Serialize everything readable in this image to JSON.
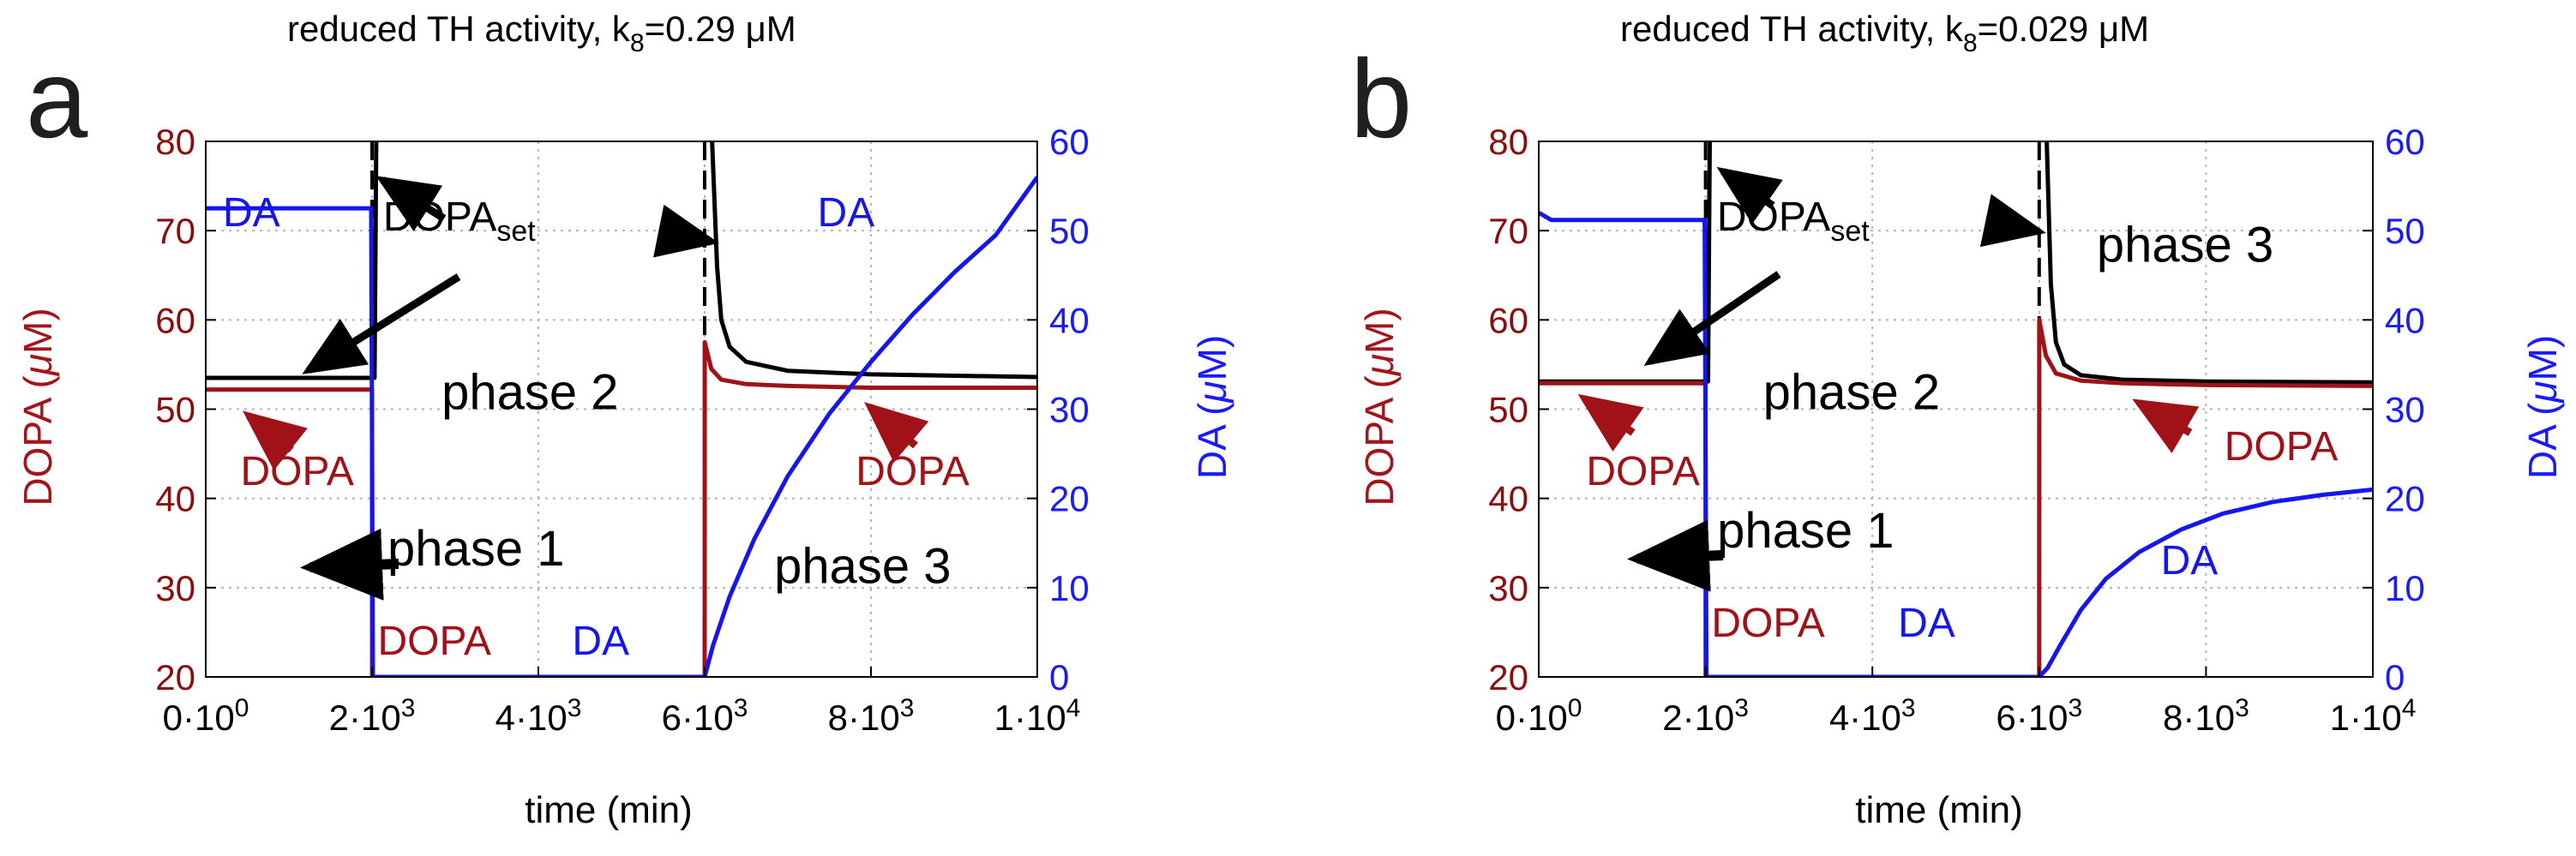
{
  "colors": {
    "dopa": "#a01218",
    "da": "#1515ee",
    "set": "#000000",
    "grid": "#b4b4b4",
    "dopa_tick": "#8b0e0e"
  },
  "chart_data": [
    {
      "type": "line",
      "panel_letter": "a",
      "title": "reduced TH activity, k",
      "title_sub": "8",
      "title_tail": "=0.29 ",
      "title_unit": "μM",
      "xlabel": "time (min)",
      "ylabel_left": "DOPA (",
      "ylabel_left_mu": "μ",
      "ylabel_left_tail": "M)",
      "ylabel_right": "DA (",
      "ylabel_right_mu": "μ",
      "ylabel_right_tail": "M)",
      "xlim": [
        0,
        10000
      ],
      "ylim_left": [
        20,
        80
      ],
      "ylim_right": [
        0,
        60
      ],
      "grid": true,
      "x_ticks": [
        0,
        2000,
        4000,
        6000,
        8000,
        10000
      ],
      "x_tick_mant": [
        "0·10",
        "2·10",
        "4·10",
        "6·10",
        "8·10",
        "1·10"
      ],
      "x_tick_exp": [
        "0",
        "3",
        "3",
        "3",
        "3",
        "4"
      ],
      "y_ticks_left": [
        "20",
        "30",
        "40",
        "50",
        "60",
        "70",
        "80"
      ],
      "y_ticks_right": [
        "0",
        "10",
        "20",
        "30",
        "40",
        "50",
        "60"
      ],
      "series": [
        {
          "name": "DOPA",
          "axis": "left",
          "points": [
            [
              0,
              52.2
            ],
            [
              2000,
              52.2
            ],
            [
              2001,
              20
            ],
            [
              6000,
              20
            ],
            [
              6001,
              57.5
            ],
            [
              6080,
              54.5
            ],
            [
              6200,
              53.3
            ],
            [
              6500,
              52.8
            ],
            [
              7000,
              52.6
            ],
            [
              8000,
              52.4
            ],
            [
              10000,
              52.4
            ]
          ]
        },
        {
          "name": "DA",
          "axis": "right",
          "points": [
            [
              0,
              52.5
            ],
            [
              1990,
              52.5
            ],
            [
              2010,
              0
            ],
            [
              6000,
              0
            ],
            [
              6100,
              3.5
            ],
            [
              6300,
              9
            ],
            [
              6600,
              15.5
            ],
            [
              7000,
              22.5
            ],
            [
              7500,
              29.5
            ],
            [
              8000,
              35.3
            ],
            [
              8500,
              40.6
            ],
            [
              9000,
              45.3
            ],
            [
              9500,
              49.5
            ],
            [
              10000,
              56
            ]
          ]
        },
        {
          "name": "DOPAset",
          "axis": "left",
          "points": [
            [
              0,
              53.5
            ],
            [
              2030,
              53.5
            ],
            [
              2050,
              80
            ]
          ]
        },
        {
          "name": "DOPAset",
          "axis": "left",
          "points": [
            [
              6090,
              80
            ],
            [
              6150,
              66
            ],
            [
              6200,
              60
            ],
            [
              6300,
              57
            ],
            [
              6500,
              55.3
            ],
            [
              7000,
              54.3
            ],
            [
              8000,
              53.9
            ],
            [
              10000,
              53.6
            ]
          ]
        }
      ],
      "dashed_x": [
        2000,
        6000
      ],
      "annotations": [
        {
          "text": "DA",
          "color": "da",
          "x": 550,
          "y": 70.5
        },
        {
          "text": "DOPA",
          "sub": "set",
          "color": "set",
          "x": 3050,
          "y": 70
        },
        {
          "text": "DA",
          "color": "da",
          "x": 7700,
          "y": 70.5
        },
        {
          "text": "phase 2",
          "color": "set",
          "x": 3900,
          "y": 50,
          "big": true
        },
        {
          "text": "DOPA",
          "color": "dopa",
          "x": 1100,
          "y": 41.5
        },
        {
          "text": "DOPA",
          "color": "dopa",
          "x": 8500,
          "y": 41.5
        },
        {
          "text": "phase 1",
          "color": "set",
          "x": 3250,
          "y": 32.5,
          "big": true
        },
        {
          "text": "phase 3",
          "color": "set",
          "x": 7900,
          "y": 30.5,
          "big": true
        },
        {
          "text": "DOPA",
          "color": "dopa",
          "x": 2750,
          "y": 22.5
        },
        {
          "text": "DA",
          "color": "da",
          "x": 4750,
          "y": 22.5
        }
      ]
    },
    {
      "type": "line",
      "panel_letter": "b",
      "title": "reduced TH activity, k",
      "title_sub": "8",
      "title_tail": "=0.029 ",
      "title_unit": "μM",
      "xlabel": "time (min)",
      "ylabel_left": "DOPA (",
      "ylabel_left_mu": "μ",
      "ylabel_left_tail": "M)",
      "ylabel_right": "DA (",
      "ylabel_right_mu": "μ",
      "ylabel_right_tail": "M)",
      "xlim": [
        0,
        10000
      ],
      "ylim_left": [
        20,
        80
      ],
      "ylim_right": [
        0,
        60
      ],
      "grid": true,
      "x_ticks": [
        0,
        2000,
        4000,
        6000,
        8000,
        10000
      ],
      "x_tick_mant": [
        "0·10",
        "2·10",
        "4·10",
        "6·10",
        "8·10",
        "1·10"
      ],
      "x_tick_exp": [
        "0",
        "3",
        "3",
        "3",
        "3",
        "4"
      ],
      "y_ticks_left": [
        "20",
        "30",
        "40",
        "50",
        "60",
        "70",
        "80"
      ],
      "y_ticks_right": [
        "0",
        "10",
        "20",
        "30",
        "40",
        "50",
        "60"
      ],
      "series": [
        {
          "name": "DOPA",
          "axis": "left",
          "points": [
            [
              0,
              52.9
            ],
            [
              2000,
              52.9
            ],
            [
              2001,
              20
            ],
            [
              6000,
              20
            ],
            [
              6001,
              60
            ],
            [
              6080,
              56
            ],
            [
              6200,
              54
            ],
            [
              6500,
              53.2
            ],
            [
              7000,
              52.9
            ],
            [
              8000,
              52.7
            ],
            [
              10000,
              52.6
            ]
          ]
        },
        {
          "name": "DA",
          "axis": "right",
          "points": [
            [
              0,
              52
            ],
            [
              150,
              51.2
            ],
            [
              1990,
              51.2
            ],
            [
              2010,
              0
            ],
            [
              6000,
              0
            ],
            [
              6100,
              1
            ],
            [
              6250,
              3.5
            ],
            [
              6500,
              7.5
            ],
            [
              6800,
              11
            ],
            [
              7200,
              14
            ],
            [
              7700,
              16.5
            ],
            [
              8200,
              18.3
            ],
            [
              8800,
              19.6
            ],
            [
              9400,
              20.4
            ],
            [
              10000,
              21
            ]
          ]
        },
        {
          "name": "DOPAset",
          "axis": "left",
          "points": [
            [
              0,
              53.1
            ],
            [
              2030,
              53.1
            ],
            [
              2050,
              80
            ]
          ]
        },
        {
          "name": "DOPAset",
          "axis": "left",
          "points": [
            [
              6090,
              80
            ],
            [
              6140,
              64
            ],
            [
              6200,
              57.5
            ],
            [
              6300,
              55
            ],
            [
              6500,
              53.8
            ],
            [
              7000,
              53.3
            ],
            [
              8000,
              53.1
            ],
            [
              10000,
              53
            ]
          ]
        }
      ],
      "dashed_x": [
        2000,
        6000
      ],
      "annotations": [
        {
          "text": "DOPA",
          "sub": "set",
          "color": "set",
          "x": 3050,
          "y": 70
        },
        {
          "text": "phase 3",
          "color": "set",
          "x": 7750,
          "y": 66.5,
          "big": true
        },
        {
          "text": "phase 2",
          "color": "set",
          "x": 3750,
          "y": 50,
          "big": true
        },
        {
          "text": "DOPA",
          "color": "dopa",
          "x": 8900,
          "y": 44.3
        },
        {
          "text": "DOPA",
          "color": "dopa",
          "x": 1250,
          "y": 41.5
        },
        {
          "text": "phase 1",
          "color": "set",
          "x": 3200,
          "y": 34.5,
          "big": true
        },
        {
          "text": "DA",
          "color": "da",
          "x": 7800,
          "y": 31.5
        },
        {
          "text": "DOPA",
          "color": "dopa",
          "x": 2750,
          "y": 24.5
        },
        {
          "text": "DA",
          "color": "da",
          "x": 4650,
          "y": 24.5
        }
      ]
    }
  ]
}
